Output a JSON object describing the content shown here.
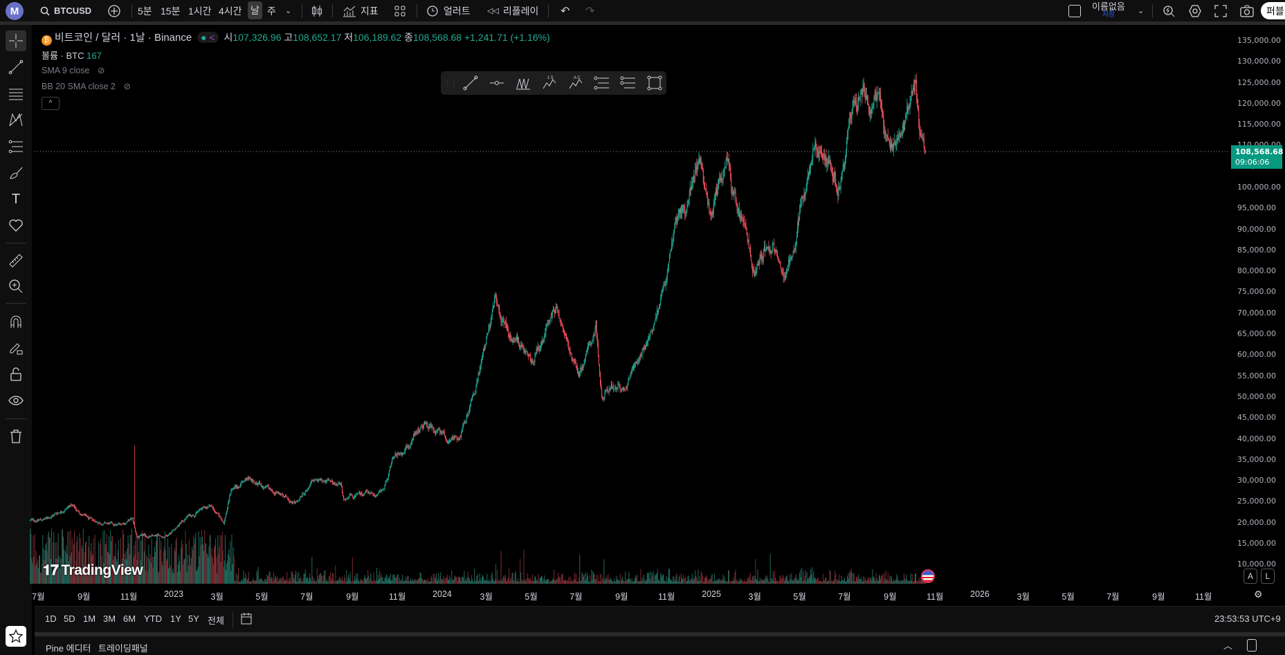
{
  "topbar": {
    "logo": "M",
    "symbol": "BTCUSD",
    "intervals": [
      "5분",
      "15분",
      "1시간",
      "4시간",
      "날",
      "주"
    ],
    "active_interval": "날",
    "indicators_label": "지표",
    "alert_label": "얼러트",
    "replay_label": "리플레이",
    "layout_name": "이름없음",
    "save_label": "저장",
    "publish_label": "퍼블"
  },
  "legend": {
    "title": "비트코인 / 달러 · 1날 · Binance",
    "open_label": "시",
    "open": "107,326.96",
    "high_label": "고",
    "high": "108,652.17",
    "low_label": "저",
    "low": "106,189.62",
    "close_label": "종",
    "close": "108,568.68",
    "change": "+1,241.71 (+1.16%)",
    "volume_label": "볼륨 · BTC",
    "volume_value": "167",
    "sma": "SMA 9 close",
    "bb": "BB 20 SMA close 2"
  },
  "price_scale": {
    "last_price": "108,568.68",
    "countdown": "09:06:06",
    "ticks": [
      "135,000.00",
      "130,000.00",
      "125,000.00",
      "120,000.00",
      "115,000.00",
      "110,000.00",
      "105,000.00",
      "100,000.00",
      "95,000.00",
      "90,000.00",
      "85,000.00",
      "80,000.00",
      "75,000.00",
      "70,000.00",
      "65,000.00",
      "60,000.00",
      "55,000.00",
      "50,000.00",
      "45,000.00",
      "40,000.00",
      "35,000.00",
      "30,000.00",
      "25,000.00",
      "20,000.00",
      "15,000.00",
      "10,000.00"
    ],
    "auto_label": "A",
    "log_label": "L"
  },
  "time_scale": [
    {
      "label": "7월",
      "date": "2022-07-01"
    },
    {
      "label": "9월",
      "date": "2022-09-01"
    },
    {
      "label": "11월",
      "date": "2022-11-01"
    },
    {
      "label": "2023",
      "date": "2023-01-01"
    },
    {
      "label": "3월",
      "date": "2023-03-01"
    },
    {
      "label": "5월",
      "date": "2023-05-01"
    },
    {
      "label": "7월",
      "date": "2023-07-01"
    },
    {
      "label": "9월",
      "date": "2023-09-01"
    },
    {
      "label": "11월",
      "date": "2023-11-01"
    },
    {
      "label": "2024",
      "date": "2024-01-01"
    },
    {
      "label": "3월",
      "date": "2024-03-01"
    },
    {
      "label": "5월",
      "date": "2024-05-01"
    },
    {
      "label": "7월",
      "date": "2024-07-01"
    },
    {
      "label": "9월",
      "date": "2024-09-01"
    },
    {
      "label": "11월",
      "date": "2024-11-01"
    },
    {
      "label": "2025",
      "date": "2025-01-01"
    },
    {
      "label": "3월",
      "date": "2025-03-01"
    },
    {
      "label": "5월",
      "date": "2025-05-01"
    },
    {
      "label": "7월",
      "date": "2025-07-01"
    },
    {
      "label": "9월",
      "date": "2025-09-01"
    },
    {
      "label": "11월",
      "date": "2025-11-01"
    },
    {
      "label": "2026",
      "date": "2026-01-01"
    },
    {
      "label": "3월",
      "date": "2026-03-01"
    },
    {
      "label": "5월",
      "date": "2026-05-01"
    },
    {
      "label": "7월",
      "date": "2026-07-01"
    },
    {
      "label": "9월",
      "date": "2026-09-01"
    },
    {
      "label": "11월",
      "date": "2026-11-01"
    }
  ],
  "bottombar": {
    "ranges": [
      "1D",
      "5D",
      "1M",
      "3M",
      "6M",
      "YTD",
      "1Y",
      "5Y",
      "전체"
    ],
    "clock": "23:53:53 UTC+9"
  },
  "bottom_panel": {
    "tabs": [
      "Pine 에디터",
      "트레이딩패널"
    ]
  },
  "watermark": "TradingView",
  "colors": {
    "up": "#22ab94",
    "down": "#f7525f",
    "accent": "#089981",
    "background": "#000000"
  },
  "chart_data": {
    "type": "candlestick",
    "symbol": "BTCUSD",
    "ylim": [
      10000,
      135000
    ],
    "approx_path": [
      [
        "2022-06-20",
        20500
      ],
      [
        "2022-07-10",
        20800
      ],
      [
        "2022-08-14",
        24200
      ],
      [
        "2022-09-10",
        20500
      ],
      [
        "2022-10-15",
        19300
      ],
      [
        "2022-11-06",
        20800
      ],
      [
        "2022-11-12",
        16600
      ],
      [
        "2022-12-20",
        16800
      ],
      [
        "2023-01-20",
        21500
      ],
      [
        "2023-02-20",
        24300
      ],
      [
        "2023-03-10",
        20100
      ],
      [
        "2023-03-20",
        28000
      ],
      [
        "2023-04-14",
        30400
      ],
      [
        "2023-06-15",
        25000
      ],
      [
        "2023-07-10",
        30400
      ],
      [
        "2023-08-16",
        29000
      ],
      [
        "2023-08-20",
        26000
      ],
      [
        "2023-10-10",
        27000
      ],
      [
        "2023-10-25",
        34500
      ],
      [
        "2023-12-08",
        43500
      ],
      [
        "2024-01-22",
        39500
      ],
      [
        "2024-02-14",
        51500
      ],
      [
        "2024-03-13",
        72500
      ],
      [
        "2024-05-01",
        58000
      ],
      [
        "2024-06-05",
        71000
      ],
      [
        "2024-07-05",
        55000
      ],
      [
        "2024-07-28",
        68500
      ],
      [
        "2024-08-05",
        51000
      ],
      [
        "2024-09-06",
        53500
      ],
      [
        "2024-10-15",
        67000
      ],
      [
        "2024-11-12",
        89000
      ],
      [
        "2024-12-17",
        106000
      ],
      [
        "2024-12-30",
        92500
      ],
      [
        "2025-01-21",
        106000
      ],
      [
        "2025-02-28",
        80000
      ],
      [
        "2025-03-25",
        88000
      ],
      [
        "2025-04-08",
        76500
      ],
      [
        "2025-05-22",
        111000
      ],
      [
        "2025-06-22",
        100500
      ],
      [
        "2025-07-14",
        121000
      ],
      [
        "2025-08-14",
        121500
      ],
      [
        "2025-09-01",
        108000
      ],
      [
        "2025-10-06",
        124500
      ],
      [
        "2025-10-11",
        111500
      ],
      [
        "2025-10-17",
        106500
      ],
      [
        "2025-10-19",
        108568.68
      ]
    ],
    "notable_wick": {
      "date": "2022-11-09",
      "high": 38500
    }
  }
}
